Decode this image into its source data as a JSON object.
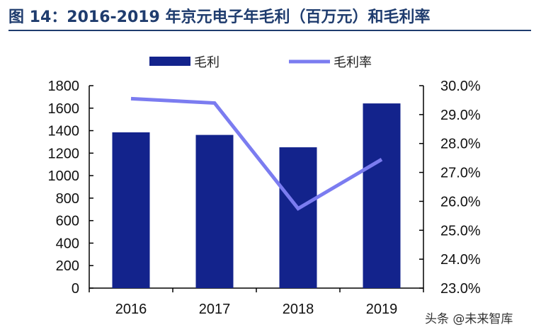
{
  "header": {
    "title": "图 14：2016-2019 年京元电子年毛利（百万元）和毛利率"
  },
  "chart_data": {
    "type": "bar",
    "title": "图 14：2016-2019 年京元电子年毛利（百万元）和毛利率",
    "categories": [
      "2016",
      "2017",
      "2018",
      "2019"
    ],
    "series": [
      {
        "name": "毛利",
        "type": "bar",
        "axis": "left",
        "color": "#13238c",
        "values": [
          1385,
          1362,
          1252,
          1642
        ]
      },
      {
        "name": "毛利率",
        "type": "line",
        "axis": "right",
        "color": "#7b7cf0",
        "values": [
          29.55,
          29.4,
          25.75,
          27.45
        ]
      }
    ],
    "left_axis": {
      "min": 0,
      "max": 1800,
      "step": 200,
      "ticks": [
        "0",
        "200",
        "400",
        "600",
        "800",
        "1000",
        "1200",
        "1400",
        "1600",
        "1800"
      ]
    },
    "right_axis": {
      "min": 23,
      "max": 30,
      "step": 1,
      "ticks": [
        "23.0%",
        "24.0%",
        "25.0%",
        "26.0%",
        "27.0%",
        "28.0%",
        "29.0%",
        "30.0%"
      ]
    },
    "legend": {
      "position": "top-center",
      "entries": [
        "毛利",
        "毛利率"
      ]
    },
    "grid": false
  },
  "watermark": "头条 @未来智库"
}
